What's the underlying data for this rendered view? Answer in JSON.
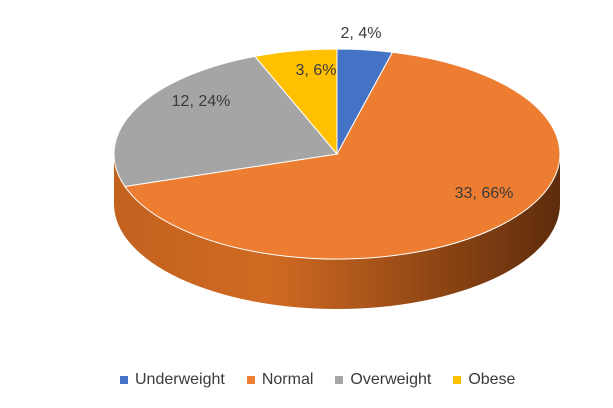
{
  "chart_data": {
    "type": "pie",
    "title": "",
    "categories": [
      "Underweight",
      "Normal",
      "Overweight",
      "Obese"
    ],
    "values": [
      2,
      33,
      12,
      3
    ],
    "data_labels": [
      "2, 4%",
      "33, 66%",
      "12, 24%",
      "3, 6%"
    ],
    "colors": [
      "#4472c4",
      "#ed7d31",
      "#a5a5a5",
      "#ffc000"
    ],
    "legend_position": "bottom",
    "style": "3d"
  },
  "legend": {
    "items": [
      {
        "label": "Underweight",
        "color": "#4472c4"
      },
      {
        "label": "Normal",
        "color": "#ed7d31"
      },
      {
        "label": "Overweight",
        "color": "#a5a5a5"
      },
      {
        "label": "Obese",
        "color": "#ffc000"
      }
    ]
  }
}
